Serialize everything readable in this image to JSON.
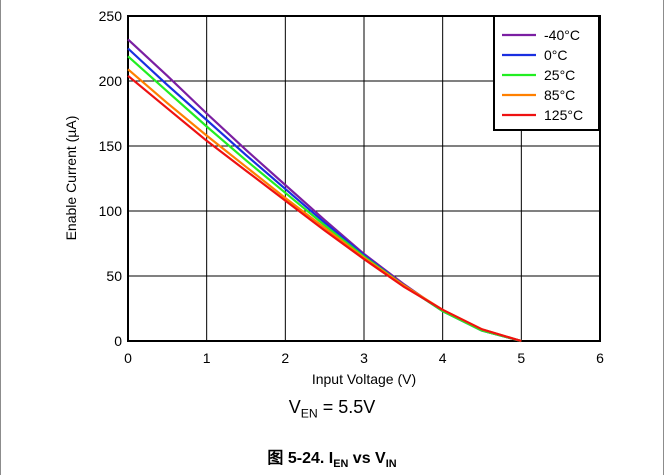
{
  "chart_data": {
    "type": "line",
    "xlabel": "Input Voltage (V)",
    "ylabel": "Enable Current (µA)",
    "xlim": [
      0,
      6
    ],
    "ylim": [
      0,
      250
    ],
    "xticks": [
      "0",
      "1",
      "2",
      "3",
      "4",
      "5",
      "6"
    ],
    "yticks": [
      "0",
      "50",
      "100",
      "150",
      "200",
      "250"
    ],
    "grid": true,
    "legend_position": "top-right",
    "series": [
      {
        "name": "-40°C",
        "color": "#7b1fa2",
        "x": [
          0,
          0.5,
          1,
          1.5,
          2,
          2.5,
          3,
          3.5,
          4,
          4.5,
          5
        ],
        "y": [
          232,
          204,
          175,
          147,
          120,
          93,
          67,
          44,
          23,
          8,
          0
        ]
      },
      {
        "name": "0°C",
        "color": "#1a2fe0",
        "x": [
          0,
          0.5,
          1,
          1.5,
          2,
          2.5,
          3,
          3.5,
          4,
          4.5,
          5
        ],
        "y": [
          225,
          197,
          170,
          143,
          117,
          91,
          66,
          43,
          23,
          8,
          0
        ]
      },
      {
        "name": "25°C",
        "color": "#22ee22",
        "x": [
          0,
          0.5,
          1,
          1.5,
          2,
          2.5,
          3,
          3.5,
          4,
          4.5,
          5
        ],
        "y": [
          219,
          192,
          165,
          139,
          114,
          89,
          65,
          43,
          23,
          8,
          0
        ]
      },
      {
        "name": "85°C",
        "color": "#ff8000",
        "x": [
          0,
          0.5,
          1,
          1.5,
          2,
          2.5,
          3,
          3.5,
          4,
          4.5,
          5
        ],
        "y": [
          209,
          183,
          158,
          134,
          110,
          87,
          64,
          43,
          24,
          9,
          0
        ]
      },
      {
        "name": "125°C",
        "color": "#ee1111",
        "x": [
          0,
          0.5,
          1,
          1.5,
          2,
          2.5,
          3,
          3.5,
          4,
          4.5,
          5
        ],
        "y": [
          204,
          179,
          154,
          131,
          108,
          85,
          63,
          42,
          24,
          9,
          0
        ]
      }
    ]
  },
  "annotation": {
    "prefix": "V",
    "sub": "EN",
    "suffix": " = 5.5V"
  },
  "caption": {
    "figure": "图 5-24. ",
    "i": "I",
    "i_sub": "EN",
    "vs": " vs ",
    "v": "V",
    "v_sub": "IN"
  }
}
